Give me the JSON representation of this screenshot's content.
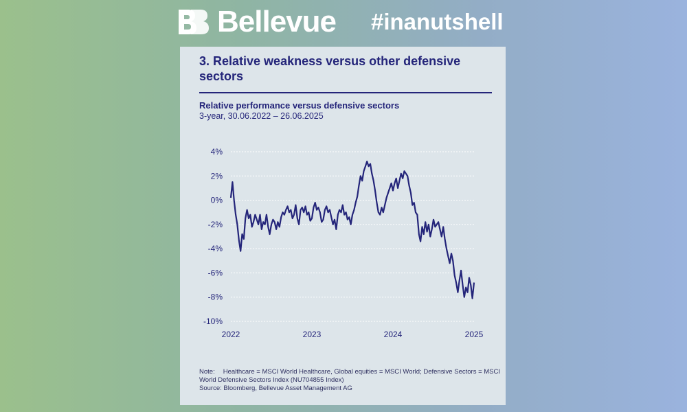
{
  "header": {
    "brand": "Bellevue",
    "hashtag": "#inanutshell",
    "logo_icon": "bellevue-bb-logo-icon"
  },
  "card": {
    "title": "3. Relative weakness versus other defensive sectors",
    "note_label": "Note:",
    "note_text": "Healthcare = MSCI World Healthcare, Global equities = MSCI World; Defensive Sectors = MSCI World Defensive Sectors Index (NU704855 Index)",
    "source": "Source: Bloomberg, Bellevue Asset Management AG"
  },
  "colors": {
    "navy": "#24257a",
    "card_bg": "#dde5ea",
    "grid": "#ffffff"
  },
  "chart_data": {
    "type": "line",
    "title": "Relative performance versus defensive sectors",
    "subtitle": "3-year, 30.06.2022 – 26.06.2025",
    "xlabel": "",
    "ylabel": "",
    "x_ticks": [
      "2022",
      "2023",
      "2024",
      "2025"
    ],
    "y_ticks": [
      "4%",
      "2%",
      "0%",
      "-2%",
      "-4%",
      "-6%",
      "-8%",
      "-10%"
    ],
    "ylim": [
      -10,
      4
    ],
    "xlim": [
      2022.0,
      2025.0
    ],
    "grid": "horizontal",
    "series": [
      {
        "values": [
          [
            2022.0,
            0.2
          ],
          [
            2022.02,
            1.5
          ],
          [
            2022.04,
            0.0
          ],
          [
            2022.06,
            -1.2
          ],
          [
            2022.08,
            -2.0
          ],
          [
            2022.1,
            -3.3
          ],
          [
            2022.12,
            -4.2
          ],
          [
            2022.14,
            -2.8
          ],
          [
            2022.16,
            -3.2
          ],
          [
            2022.18,
            -1.5
          ],
          [
            2022.2,
            -0.8
          ],
          [
            2022.22,
            -1.5
          ],
          [
            2022.24,
            -1.2
          ],
          [
            2022.26,
            -2.2
          ],
          [
            2022.28,
            -1.8
          ],
          [
            2022.3,
            -1.2
          ],
          [
            2022.32,
            -1.6
          ],
          [
            2022.34,
            -2.0
          ],
          [
            2022.36,
            -1.2
          ],
          [
            2022.38,
            -2.4
          ],
          [
            2022.4,
            -1.8
          ],
          [
            2022.42,
            -2.0
          ],
          [
            2022.44,
            -1.2
          ],
          [
            2022.46,
            -2.2
          ],
          [
            2022.48,
            -2.8
          ],
          [
            2022.5,
            -2.0
          ],
          [
            2022.52,
            -1.6
          ],
          [
            2022.54,
            -1.8
          ],
          [
            2022.56,
            -2.4
          ],
          [
            2022.58,
            -1.8
          ],
          [
            2022.6,
            -2.2
          ],
          [
            2022.62,
            -1.4
          ],
          [
            2022.64,
            -1.0
          ],
          [
            2022.66,
            -1.2
          ],
          [
            2022.68,
            -0.8
          ],
          [
            2022.7,
            -0.5
          ],
          [
            2022.72,
            -1.0
          ],
          [
            2022.74,
            -0.8
          ],
          [
            2022.76,
            -1.5
          ],
          [
            2022.78,
            -1.2
          ],
          [
            2022.8,
            -0.4
          ],
          [
            2022.82,
            -1.5
          ],
          [
            2022.84,
            -2.0
          ],
          [
            2022.86,
            -0.8
          ],
          [
            2022.88,
            -0.6
          ],
          [
            2022.9,
            -1.0
          ],
          [
            2022.92,
            -0.5
          ],
          [
            2022.94,
            -1.2
          ],
          [
            2022.96,
            -1.0
          ],
          [
            2022.98,
            -1.7
          ],
          [
            2023.0,
            -1.5
          ],
          [
            2023.02,
            -0.6
          ],
          [
            2023.04,
            -0.2
          ],
          [
            2023.06,
            -0.8
          ],
          [
            2023.08,
            -0.6
          ],
          [
            2023.1,
            -1.0
          ],
          [
            2023.12,
            -1.8
          ],
          [
            2023.14,
            -1.6
          ],
          [
            2023.16,
            -0.8
          ],
          [
            2023.18,
            -0.5
          ],
          [
            2023.2,
            -1.0
          ],
          [
            2023.22,
            -0.8
          ],
          [
            2023.24,
            -1.4
          ],
          [
            2023.26,
            -2.0
          ],
          [
            2023.28,
            -1.6
          ],
          [
            2023.3,
            -2.4
          ],
          [
            2023.32,
            -1.2
          ],
          [
            2023.34,
            -0.8
          ],
          [
            2023.36,
            -1.0
          ],
          [
            2023.38,
            -0.4
          ],
          [
            2023.4,
            -1.2
          ],
          [
            2023.42,
            -1.0
          ],
          [
            2023.44,
            -1.6
          ],
          [
            2023.46,
            -1.4
          ],
          [
            2023.48,
            -2.0
          ],
          [
            2023.5,
            -1.2
          ],
          [
            2023.52,
            -0.8
          ],
          [
            2023.54,
            -0.2
          ],
          [
            2023.56,
            0.3
          ],
          [
            2023.58,
            1.2
          ],
          [
            2023.6,
            2.0
          ],
          [
            2023.62,
            1.6
          ],
          [
            2023.64,
            2.4
          ],
          [
            2023.66,
            2.8
          ],
          [
            2023.68,
            3.2
          ],
          [
            2023.7,
            2.8
          ],
          [
            2023.72,
            3.0
          ],
          [
            2023.74,
            2.2
          ],
          [
            2023.76,
            1.6
          ],
          [
            2023.78,
            0.8
          ],
          [
            2023.8,
            -0.2
          ],
          [
            2023.82,
            -1.0
          ],
          [
            2023.84,
            -1.2
          ],
          [
            2023.86,
            -0.6
          ],
          [
            2023.88,
            -1.0
          ],
          [
            2023.9,
            -0.4
          ],
          [
            2023.92,
            0.2
          ],
          [
            2023.94,
            0.6
          ],
          [
            2023.96,
            1.0
          ],
          [
            2023.98,
            1.4
          ],
          [
            2024.0,
            0.8
          ],
          [
            2024.02,
            1.4
          ],
          [
            2024.04,
            1.8
          ],
          [
            2024.06,
            1.0
          ],
          [
            2024.08,
            1.6
          ],
          [
            2024.1,
            2.2
          ],
          [
            2024.12,
            1.8
          ],
          [
            2024.14,
            2.4
          ],
          [
            2024.16,
            2.2
          ],
          [
            2024.18,
            2.0
          ],
          [
            2024.2,
            1.2
          ],
          [
            2024.22,
            0.6
          ],
          [
            2024.24,
            -0.4
          ],
          [
            2024.26,
            -0.2
          ],
          [
            2024.28,
            -1.0
          ],
          [
            2024.3,
            -1.2
          ],
          [
            2024.32,
            -2.8
          ],
          [
            2024.34,
            -3.4
          ],
          [
            2024.36,
            -2.2
          ],
          [
            2024.38,
            -2.8
          ],
          [
            2024.4,
            -1.8
          ],
          [
            2024.42,
            -2.6
          ],
          [
            2024.44,
            -2.0
          ],
          [
            2024.46,
            -3.0
          ],
          [
            2024.48,
            -2.4
          ],
          [
            2024.5,
            -1.6
          ],
          [
            2024.52,
            -2.2
          ],
          [
            2024.54,
            -2.0
          ],
          [
            2024.56,
            -1.8
          ],
          [
            2024.58,
            -2.4
          ],
          [
            2024.6,
            -3.0
          ],
          [
            2024.62,
            -2.2
          ],
          [
            2024.64,
            -3.2
          ],
          [
            2024.66,
            -4.0
          ],
          [
            2024.68,
            -4.6
          ],
          [
            2024.7,
            -5.2
          ],
          [
            2024.72,
            -4.4
          ],
          [
            2024.74,
            -5.0
          ],
          [
            2024.76,
            -6.2
          ],
          [
            2024.78,
            -6.8
          ],
          [
            2024.8,
            -7.6
          ],
          [
            2024.82,
            -6.6
          ],
          [
            2024.84,
            -5.8
          ],
          [
            2024.86,
            -7.0
          ],
          [
            2024.88,
            -8.0
          ],
          [
            2024.9,
            -7.2
          ],
          [
            2024.92,
            -7.6
          ],
          [
            2024.94,
            -6.4
          ],
          [
            2024.96,
            -7.0
          ],
          [
            2024.98,
            -8.1
          ],
          [
            2025.0,
            -6.8
          ]
        ]
      }
    ]
  }
}
